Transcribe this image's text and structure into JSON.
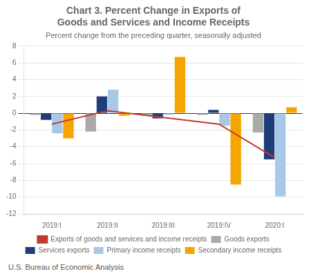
{
  "chart_data": {
    "type": "bar",
    "title": [
      "Chart 3. Percent Change in Exports of",
      "Goods and Services and Income Receipts"
    ],
    "subtitle": "Percent change from the preceding quarter, seasonally adjusted",
    "source": "U.S. Bureau of Economic Analysis",
    "categories": [
      "2019:I",
      "2019:II",
      "2019:III",
      "2019:IV",
      "2020:I"
    ],
    "series": [
      {
        "name": "Goods exports",
        "color": "#aaaaaa",
        "values": [
          -0.2,
          -2.2,
          -0.3,
          -0.2,
          -2.3
        ]
      },
      {
        "name": "Services exports",
        "color": "#1f3d7a",
        "values": [
          -0.8,
          2.0,
          -0.6,
          0.4,
          -5.5
        ]
      },
      {
        "name": "Primary income receipts",
        "color": "#a8c8e8",
        "values": [
          -2.4,
          2.8,
          -0.2,
          -1.5,
          -9.9
        ]
      },
      {
        "name": "Secondary income receipts",
        "color": "#f5a500",
        "values": [
          -3.0,
          -0.3,
          6.7,
          -8.5,
          0.7
        ]
      },
      {
        "name": "Exports of goods and services and income receipts",
        "type": "line",
        "color": "#c0392b",
        "values": [
          -1.3,
          0.3,
          -0.5,
          -1.3,
          -5.3
        ]
      }
    ],
    "ylim": [
      -12,
      8
    ],
    "yticks": [
      -12,
      -10,
      -8,
      -6,
      -4,
      -2,
      0,
      2,
      4,
      6,
      8
    ],
    "grid": true,
    "legend": "bottom"
  }
}
